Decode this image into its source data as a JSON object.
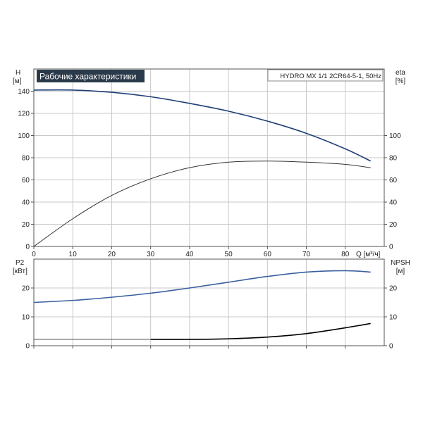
{
  "chart_data": [
    {
      "type": "line",
      "title": "Рабочие характеристики",
      "model_label": "HYDRO MX 1/1 2CR64-5-1, 50Hz",
      "xlabel": "Q [м³/ч]",
      "ylabel_left": [
        "H",
        "[м]"
      ],
      "ylabel_right": [
        "eta",
        "[%]"
      ],
      "xlim": [
        0,
        90
      ],
      "x_ticks": [
        0,
        10,
        20,
        30,
        40,
        50,
        60,
        70,
        80
      ],
      "ylim_left": [
        0,
        160
      ],
      "y_ticks_left": [
        0,
        20,
        40,
        60,
        80,
        100,
        120,
        140
      ],
      "ylim_right": [
        0,
        160
      ],
      "y_ticks_right": [
        0,
        20,
        40,
        60,
        80,
        100
      ],
      "grid": true,
      "series": [
        {
          "axis": "left",
          "color": "#1f3f77",
          "x": [
            0,
            10,
            20,
            30,
            40,
            50,
            60,
            70,
            80,
            86.5
          ],
          "y": [
            141,
            141,
            139,
            135,
            129,
            122,
            113,
            102,
            88,
            77
          ]
        },
        {
          "axis": "right",
          "color": "#333333",
          "x": [
            0,
            10,
            20,
            30,
            40,
            50,
            60,
            70,
            80,
            86.5
          ],
          "y": [
            0,
            25,
            46,
            61,
            71,
            76,
            77,
            76,
            74,
            71
          ]
        }
      ]
    },
    {
      "type": "line",
      "ylabel_left": [
        "P2",
        "[кВт]"
      ],
      "ylabel_right": [
        "NPSH",
        "[м]"
      ],
      "xlim": [
        0,
        90
      ],
      "x_ticks": [
        0,
        10,
        20,
        30,
        40,
        50,
        60,
        70,
        80
      ],
      "ylim_left": [
        0,
        30
      ],
      "y_ticks_left": [
        0,
        10,
        20
      ],
      "ylim_right": [
        0,
        30
      ],
      "y_ticks_right": [
        0,
        10,
        20
      ],
      "grid": true,
      "series": [
        {
          "axis": "left",
          "color": "#3a5fa0",
          "x": [
            0,
            10,
            20,
            30,
            40,
            50,
            60,
            70,
            80,
            86.5
          ],
          "y": [
            15,
            15.7,
            16.8,
            18.2,
            20,
            22,
            24,
            25.5,
            26,
            25.5
          ]
        },
        {
          "axis": "left",
          "color": "#555555",
          "width": 1,
          "x": [
            0,
            30
          ],
          "y": [
            2.2,
            2.2
          ]
        },
        {
          "axis": "right",
          "color": "#000000",
          "width": 1.6,
          "x": [
            30,
            40,
            50,
            60,
            70,
            80,
            86.5
          ],
          "y": [
            2.2,
            2.2,
            2.4,
            3,
            4.2,
            6.2,
            7.7
          ]
        }
      ]
    }
  ]
}
